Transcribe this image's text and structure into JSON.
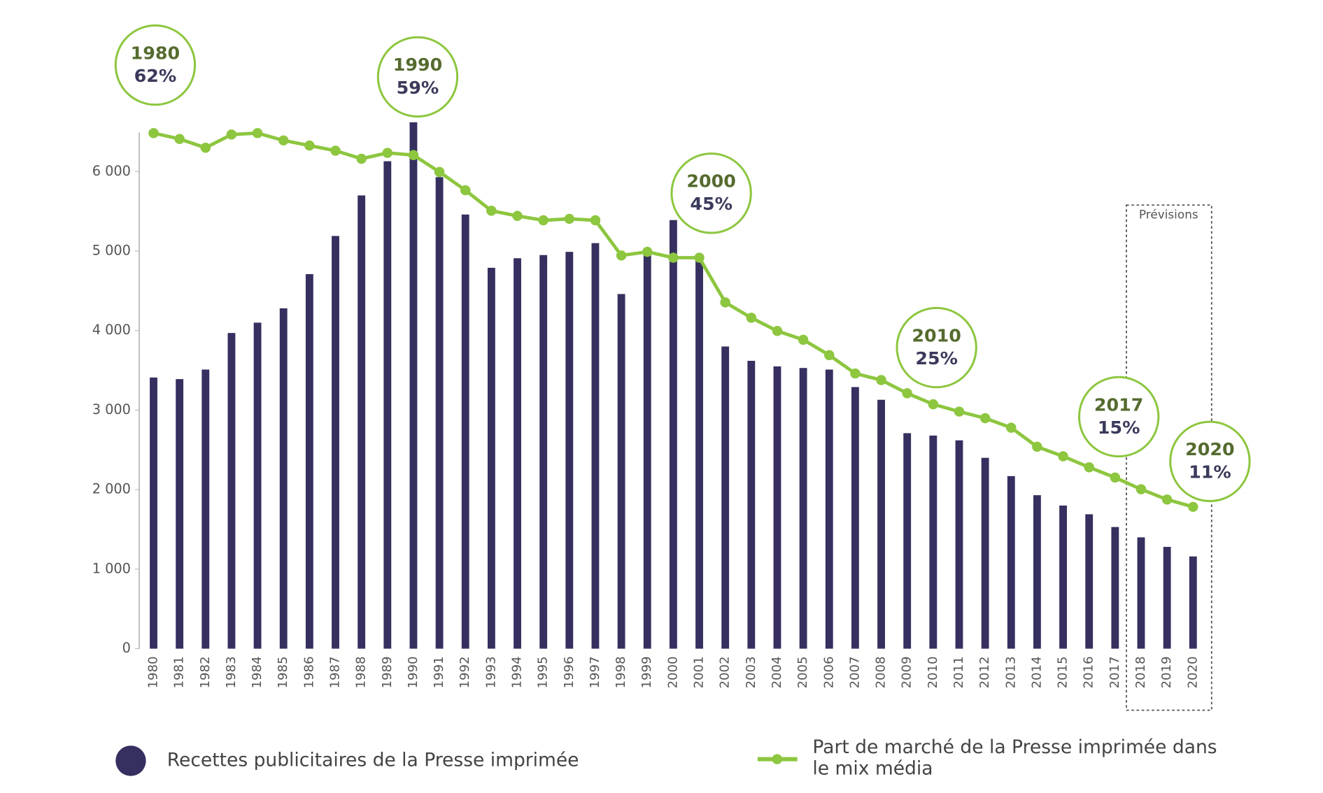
{
  "chart_data": {
    "type": "bar",
    "categories": [
      "1980",
      "1981",
      "1982",
      "1983",
      "1984",
      "1985",
      "1986",
      "1987",
      "1988",
      "1989",
      "1990",
      "1991",
      "1992",
      "1993",
      "1994",
      "1995",
      "1996",
      "1997",
      "1998",
      "1999",
      "2000",
      "2001",
      "2002",
      "2003",
      "2004",
      "2005",
      "2006",
      "2007",
      "2008",
      "2009",
      "2010",
      "2011",
      "2012",
      "2013",
      "2014",
      "2015",
      "2016",
      "2017",
      "2018",
      "2019",
      "2020"
    ],
    "series": [
      {
        "name": "Recettes publicitaires de la Presse imprimée",
        "type": "bar",
        "color": "#35305f",
        "values": [
          3410,
          3390,
          3510,
          3970,
          4100,
          4280,
          4710,
          5190,
          5700,
          6130,
          6620,
          5930,
          5460,
          4790,
          4910,
          4950,
          4990,
          5100,
          4460,
          4970,
          5390,
          4920,
          3800,
          3620,
          3550,
          3530,
          3510,
          3290,
          3130,
          2710,
          2680,
          2620,
          2400,
          2170,
          1930,
          1800,
          1690,
          1530,
          1400,
          1280,
          1160
        ]
      },
      {
        "name": "Part de marché de la Presse imprimée dans le mix média",
        "type": "line",
        "axis": "y2",
        "color": "#8dc63f",
        "values": [
          62,
          61.2,
          60,
          61.8,
          62,
          61,
          60.3,
          59.6,
          58.5,
          59.3,
          59,
          56.7,
          54.2,
          51.4,
          50.7,
          50.1,
          50.3,
          50.1,
          45.3,
          45.8,
          45,
          45,
          38.9,
          36.8,
          35,
          33.8,
          31.7,
          29.2,
          28.3,
          26.5,
          25,
          24,
          23.1,
          21.8,
          19.2,
          17.9,
          16.4,
          15,
          13.4,
          12,
          11
        ]
      }
    ],
    "ylim": [
      0,
      7000
    ],
    "yticks": [
      0,
      {
        "value": 1000,
        "label": "1 000"
      },
      {
        "value": 2000,
        "label": "2 000"
      },
      {
        "value": 3000,
        "label": "3 000"
      },
      {
        "value": 4000,
        "label": "4 000"
      },
      {
        "value": 5000,
        "label": "5 000"
      },
      {
        "value": 6000,
        "label": "6 000"
      }
    ],
    "y2lim": [
      -8.35,
      67.6
    ],
    "annotations": [
      [
        "1980",
        "62%"
      ],
      [
        "1990",
        "59%"
      ],
      [
        "2000",
        "45%"
      ],
      [
        "2010",
        "25%"
      ],
      [
        "2017",
        "15%"
      ],
      [
        "2020",
        "11%"
      ]
    ],
    "forecast_label": "Prévisions"
  }
}
